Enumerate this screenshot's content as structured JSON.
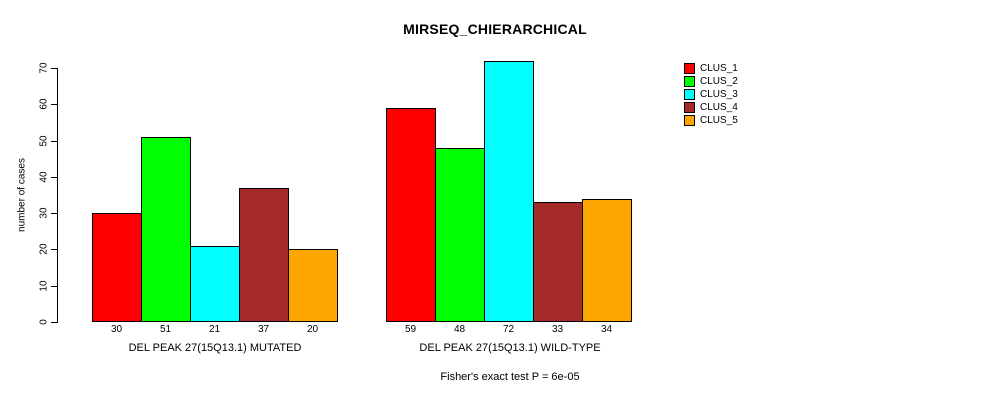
{
  "title": "MIRSEQ_CHIERARCHICAL",
  "footer": "Fisher's exact test P = 6e-05",
  "chart_data": {
    "type": "bar",
    "title": "MIRSEQ_CHIERARCHICAL",
    "ylabel": "number of cases",
    "xlabel": "",
    "ylim": [
      0,
      70
    ],
    "yticks": [
      0,
      10,
      20,
      30,
      40,
      50,
      60,
      70
    ],
    "grid": false,
    "legend_position": "right-outside",
    "show_values_under_bars": true,
    "categories": [
      "DEL PEAK 27(15Q13.1) MUTATED",
      "DEL PEAK 27(15Q13.1) WILD-TYPE"
    ],
    "series": [
      {
        "name": "CLUS_1",
        "color": "#FF0000",
        "values": [
          30,
          59
        ]
      },
      {
        "name": "CLUS_2",
        "color": "#00FF00",
        "values": [
          51,
          48
        ]
      },
      {
        "name": "CLUS_3",
        "color": "#00FFFF",
        "values": [
          21,
          72
        ]
      },
      {
        "name": "CLUS_4",
        "color": "#A52A2A",
        "values": [
          37,
          33
        ]
      },
      {
        "name": "CLUS_5",
        "color": "#FFA500",
        "values": [
          20,
          34
        ]
      }
    ],
    "annotation": "Fisher's exact test P = 6e-05"
  }
}
